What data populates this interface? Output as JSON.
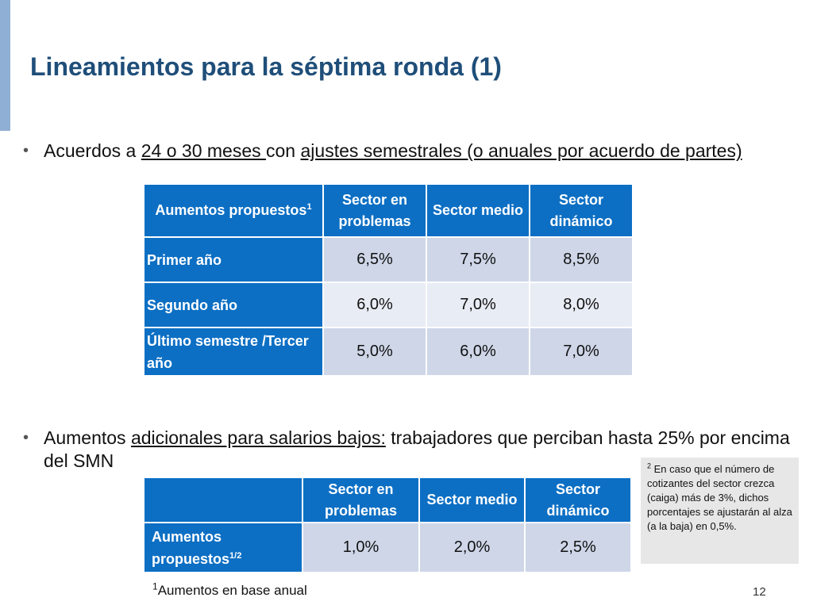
{
  "title": "Lineamientos para la séptima ronda (1)",
  "bullet1": {
    "p1": "Acuerdos a ",
    "u1": "24 o 30 meses ",
    "p2": "con ",
    "u2": "ajustes semestrales (o anuales por acuerdo de partes)"
  },
  "table1": {
    "headers": [
      "Aumentos propuestos",
      "Sector en problemas",
      "Sector medio",
      "Sector dinámico"
    ],
    "header_sup": "1",
    "rows": [
      {
        "label": "Primer año",
        "values": [
          "6,5%",
          "7,5%",
          "8,5%"
        ]
      },
      {
        "label": "Segundo año",
        "values": [
          "6,0%",
          "7,0%",
          "8,0%"
        ]
      },
      {
        "label": "Último semestre /Tercer año",
        "values": [
          "5,0%",
          "6,0%",
          "7,0%"
        ]
      }
    ]
  },
  "bullet2": {
    "p1": "Aumentos ",
    "u1": "adicionales para salarios bajos:",
    "p2": " trabajadores que perciban hasta 25% por encima del SMN"
  },
  "table2": {
    "headers": [
      "",
      "Sector en problemas",
      "Sector medio",
      "Sector dinámico"
    ],
    "row": {
      "label": "Aumentos propuestos",
      "label_sup": "1/2",
      "values": [
        "1,0%",
        "2,0%",
        "2,5%"
      ]
    }
  },
  "note": {
    "sup": "2",
    "text": " En caso que el número de cotizantes del sector crezca (caiga) más de 3%, dichos porcentajes se ajustarán al alza (a la baja) en 0,5%."
  },
  "footnote": {
    "sup": "1",
    "text": "Aumentos en base anual"
  },
  "page_number": "12",
  "colors": {
    "accent": "#8fb0d4",
    "title": "#1f4e79",
    "table_header": "#0c6fc4",
    "cell_light": "#e8ecf4",
    "cell_mid": "#ced6e8",
    "note_bg": "#e7e7e7"
  }
}
